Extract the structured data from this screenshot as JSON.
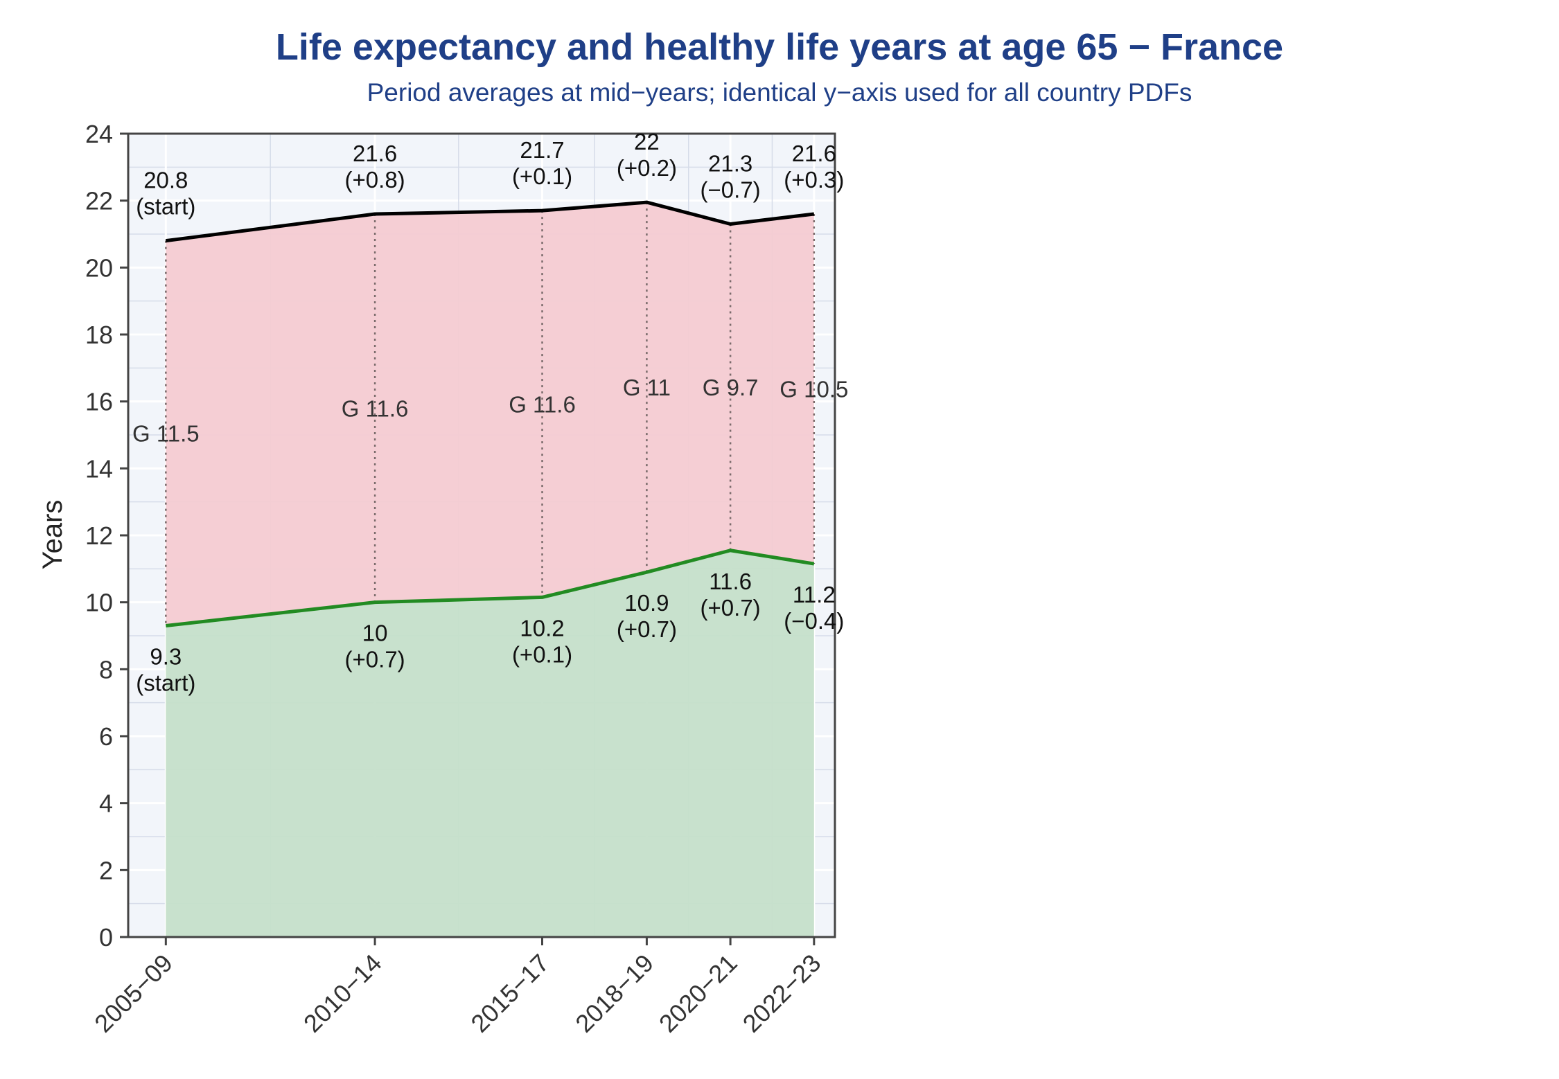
{
  "chart_data": {
    "type": "area",
    "title": "Life expectancy and healthy life years at age 65 − France",
    "subtitle": "Period averages at mid−years; identical y−axis used for all country PDFs",
    "ylabel": "Years",
    "ylim": [
      0,
      24
    ],
    "yticks": [
      0,
      2,
      4,
      6,
      8,
      10,
      12,
      14,
      16,
      18,
      20,
      22,
      24
    ],
    "x_numeric": [
      2007,
      2012,
      2016,
      2018.5,
      2020.5,
      2022.5
    ],
    "categories": [
      "2005−09",
      "2010−14",
      "2015−17",
      "2018−19",
      "2020−21",
      "2022−23"
    ],
    "series": [
      {
        "values": [
          20.8,
          21.6,
          21.7,
          21.95,
          21.3,
          21.6
        ],
        "labels": [
          "20.8",
          "21.6",
          "21.7",
          "22",
          "21.3",
          "21.6"
        ],
        "changes": [
          "(start)",
          "(+0.8)",
          "(+0.1)",
          "(+0.2)",
          "(−0.7)",
          "(+0.3)"
        ]
      },
      {
        "values": [
          9.3,
          10.0,
          10.15,
          10.9,
          11.55,
          11.15
        ],
        "labels": [
          "9.3",
          "10",
          "10.2",
          "10.9",
          "11.6",
          "11.2"
        ],
        "changes": [
          "(start)",
          "(+0.7)",
          "(+0.1)",
          "(+0.7)",
          "(+0.7)",
          "(−0.4)"
        ]
      }
    ],
    "gap_labels": [
      "G 11.5",
      "G 11.6",
      "G 11.6",
      "G 11",
      "G 9.7",
      "G 10.5"
    ],
    "grid": true,
    "colors": {
      "life_line": "#000000",
      "healthy_line": "#228b22",
      "gap_fill": "#f4cbd2",
      "healthy_fill": "#c5dfca",
      "plot_bg": "#f2f5fa",
      "title": "#1f3f87"
    }
  }
}
